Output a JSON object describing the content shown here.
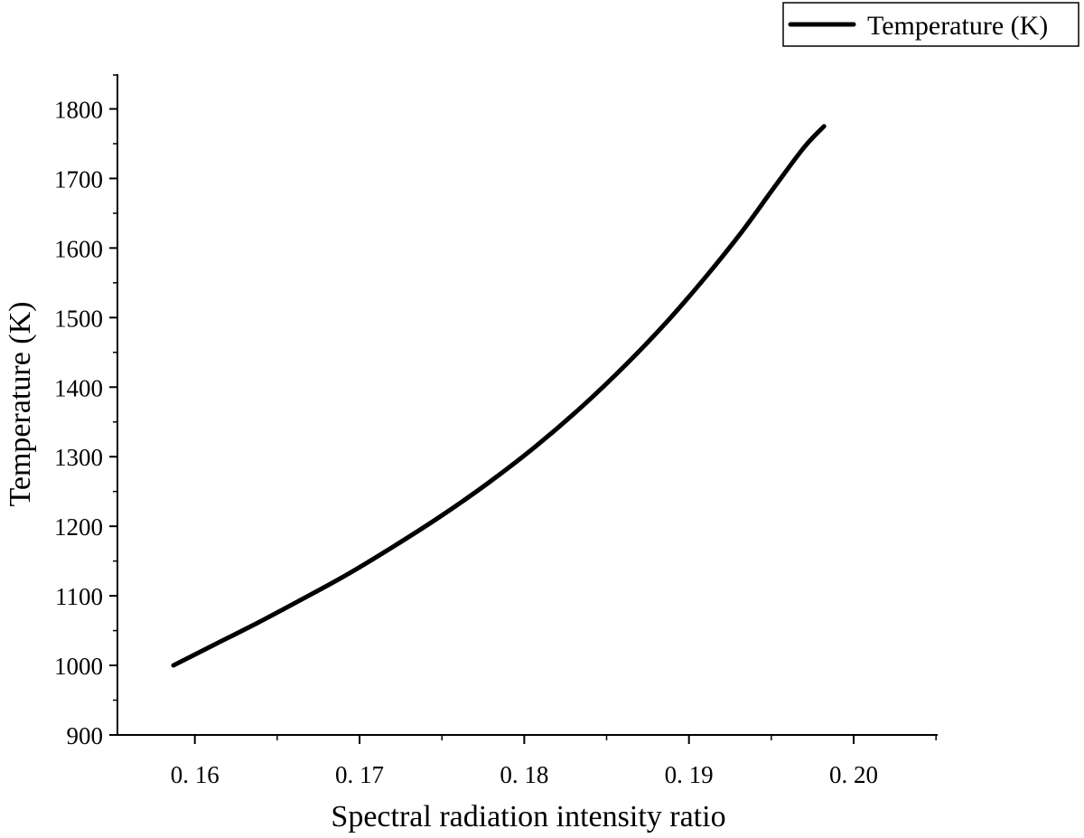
{
  "chart_data": {
    "type": "line",
    "title": "",
    "xlabel": "Spectral radiation intensity ratio",
    "ylabel": "Temperature (K)",
    "xlim": [
      0.1553,
      0.2051
    ],
    "ylim": [
      900,
      1850
    ],
    "x_ticks": [
      0.16,
      0.17,
      0.18,
      0.19,
      0.2
    ],
    "x_tick_labels": [
      "0. 16",
      "0. 17",
      "0. 18",
      "0. 19",
      "0. 20"
    ],
    "y_ticks": [
      900,
      1000,
      1100,
      1200,
      1300,
      1400,
      1500,
      1600,
      1700,
      1800
    ],
    "y_tick_labels": [
      "900",
      "1000",
      "1100",
      "1200",
      "1300",
      "1400",
      "1500",
      "1600",
      "1700",
      "1800"
    ],
    "grid": false,
    "legend": {
      "position": "top-right",
      "entries": [
        "Temperature (K)"
      ]
    },
    "series": [
      {
        "name": "Temperature (K)",
        "color": "#000000",
        "x": [
          0.1587,
          0.1612,
          0.1638,
          0.1665,
          0.1692,
          0.172,
          0.1749,
          0.1778,
          0.1807,
          0.1835,
          0.1862,
          0.1887,
          0.191,
          0.1932,
          0.1952,
          0.197,
          0.1982
        ],
        "y": [
          1000,
          1030,
          1061,
          1095,
          1130,
          1170,
          1214,
          1262,
          1315,
          1372,
          1433,
          1495,
          1558,
          1623,
          1688,
          1745,
          1775
        ]
      }
    ]
  }
}
